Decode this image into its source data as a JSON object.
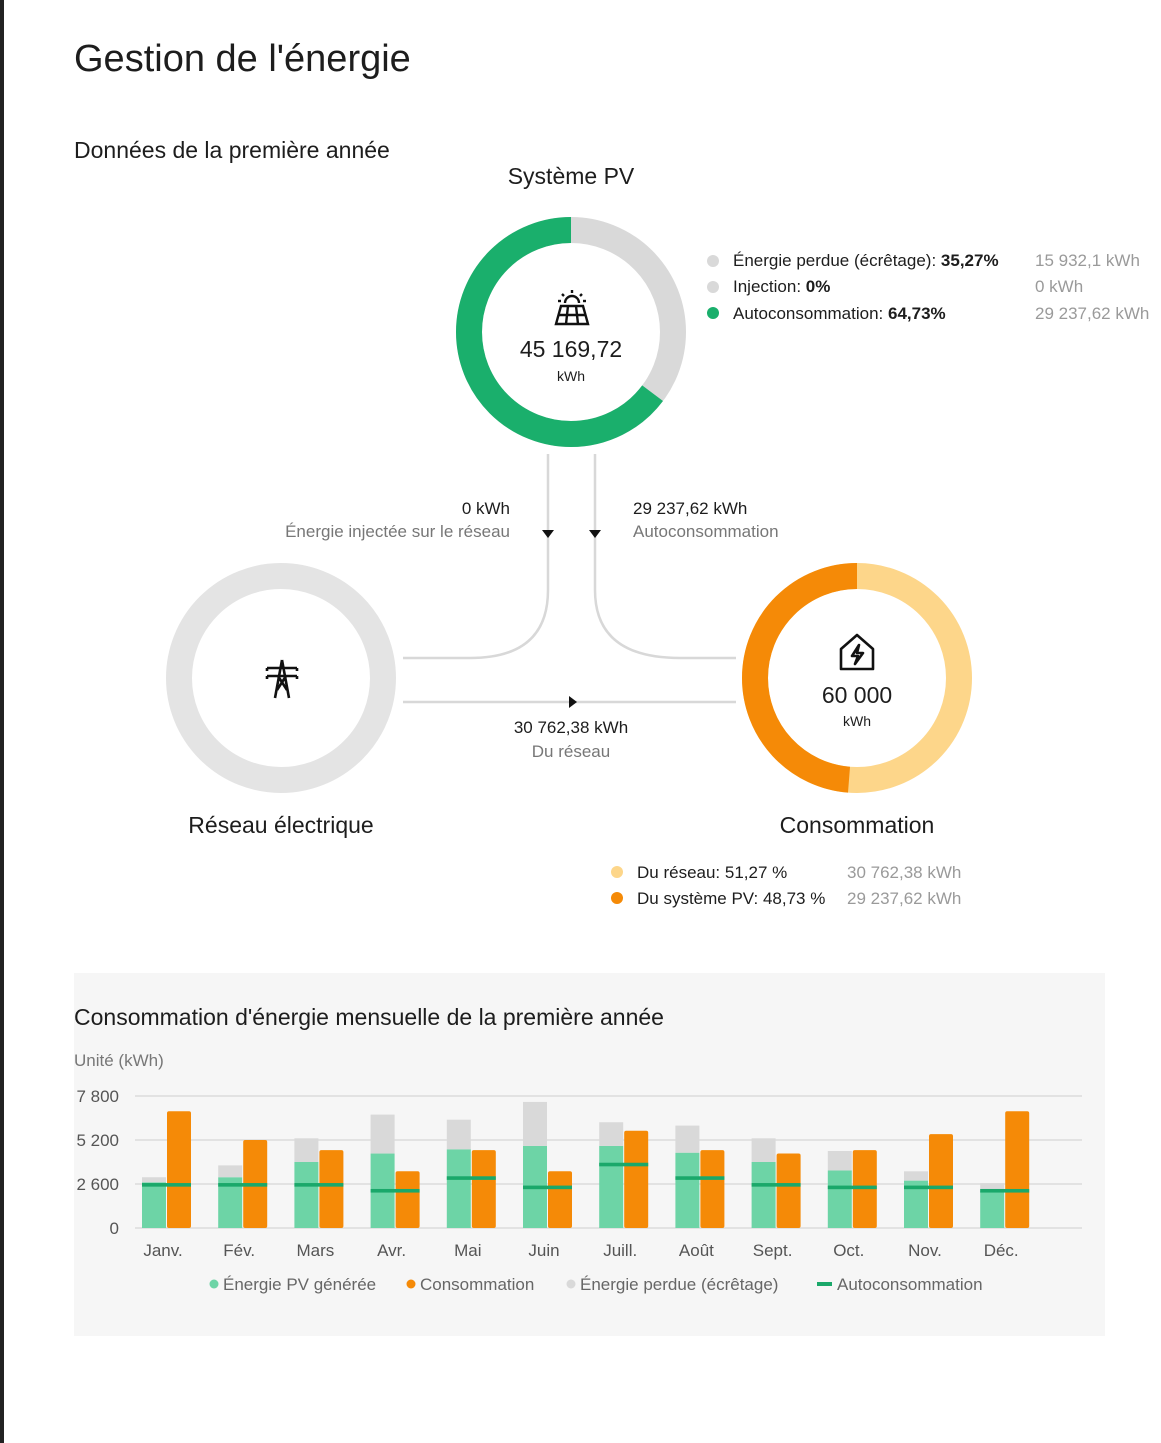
{
  "page_title": "Gestion de l'énergie",
  "section_title": "Données de la première année",
  "pv": {
    "title": "Système PV",
    "value": "45 169,72",
    "unit": "kWh",
    "icon": "solar-panel-icon",
    "legend": [
      {
        "label": "Énergie perdue (écrêtage):",
        "pct": "35,27%",
        "amount": "15 932,1 kWh",
        "color": "#d9d9d9"
      },
      {
        "label": "Injection:",
        "pct": "0%",
        "amount": "0 kWh",
        "color": "#d9d9d9"
      },
      {
        "label": "Autoconsommation:",
        "pct": "64,73%",
        "amount": "29 237,62 kWh",
        "color": "#1aaf6c"
      }
    ],
    "ring_fractions": {
      "autoconsommation": 0.6473,
      "perdue": 0.3527
    },
    "ring_colors": {
      "autoconsommation": "#1aaf6c",
      "perdue": "#d9d9d9"
    }
  },
  "flows": {
    "injected": {
      "value": "0 kWh",
      "label": "Énergie injectée sur le réseau"
    },
    "self": {
      "value": "29 237,62 kWh",
      "label": "Autoconsommation"
    },
    "grid": {
      "value": "30 762,38 kWh",
      "label": "Du réseau"
    }
  },
  "grid": {
    "title": "Réseau électrique",
    "icon": "power-tower-icon",
    "ring_color": "#e4e4e4"
  },
  "consumption": {
    "title": "Consommation",
    "value": "60 000",
    "unit": "kWh",
    "icon": "house-energy-icon",
    "ring_fractions": {
      "du_pv": 0.4873,
      "du_reseau": 0.5127
    },
    "ring_colors": {
      "du_pv": "#f58a07",
      "du_reseau": "#fdd68a"
    },
    "legend": [
      {
        "label": "Du réseau: 51,27 %",
        "amount": "30 762,38 kWh",
        "color": "#fdd68a"
      },
      {
        "label": "Du système PV: 48,73 %",
        "amount": "29 237,62 kWh",
        "color": "#f58a07"
      }
    ]
  },
  "chart_title": "Consommation d'énergie mensuelle de la première année",
  "chart_unit": "Unité (kWh)",
  "chart_data": {
    "type": "bar",
    "categories": [
      "Janv.",
      "Fév.",
      "Mars",
      "Avr.",
      "Mai",
      "Juin",
      "Juill.",
      "Août",
      "Sept.",
      "Oct.",
      "Nov.",
      "Déc."
    ],
    "ylim": [
      0,
      7800
    ],
    "yticks": [
      0,
      2600,
      5200,
      7800
    ],
    "ytick_labels": [
      "0",
      "2 600",
      "5 200",
      "7 800"
    ],
    "series": [
      {
        "name": "Énergie PV générée",
        "color": "#6dd4a6",
        "values": [
          2700,
          3000,
          3900,
          4400,
          4650,
          4850,
          4850,
          4450,
          3900,
          3400,
          2800,
          2200
        ]
      },
      {
        "name": "Consommation",
        "color": "#f58a07",
        "values": [
          6900,
          5200,
          4600,
          3350,
          4600,
          3350,
          5750,
          4600,
          4400,
          4600,
          5550,
          6900
        ]
      },
      {
        "name": "Énergie perdue (écrêtage)",
        "color": "#d9d9d9",
        "values": [
          300,
          700,
          1400,
          2300,
          1750,
          2600,
          1400,
          1600,
          1400,
          1150,
          550,
          450
        ]
      },
      {
        "name": "Autoconsommation",
        "color": "#1aa86a",
        "values": [
          2550,
          2550,
          2550,
          2200,
          2950,
          2400,
          3750,
          2950,
          2550,
          2400,
          2400,
          2200
        ]
      }
    ],
    "grid": true,
    "legend_position": "bottom"
  }
}
